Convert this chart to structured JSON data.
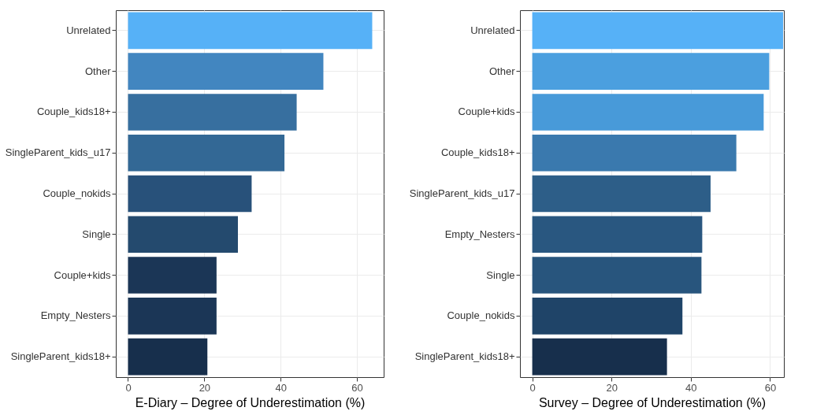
{
  "chart_data": [
    {
      "type": "bar",
      "orientation": "horizontal",
      "xlabel": "E-Diary – Degree of Underestimation (%)",
      "categories": [
        "Unrelated",
        "Other",
        "Couple_kids18+",
        "SingleParent_kids_u17",
        "Couple_nokids",
        "Single",
        "Couple+kids",
        "Empty_Nesters",
        "SingleParent_kids18+"
      ],
      "values": [
        64,
        51.2,
        44.2,
        41,
        32.4,
        28.8,
        23.2,
        23.2,
        20.8
      ],
      "colors": [
        "#56b1f7",
        "#4286c0",
        "#376f9f",
        "#336895",
        "#28517a",
        "#244a6e",
        "#1b3656",
        "#1b3656",
        "#172f4c"
      ],
      "xlim": [
        -3.2,
        67
      ],
      "xticks": [
        0,
        20,
        40,
        60
      ],
      "grid": true,
      "legend": false
    },
    {
      "type": "bar",
      "orientation": "horizontal",
      "xlabel": "Survey – Degree of Underestimation (%)",
      "categories": [
        "Unrelated",
        "Other",
        "Couple+kids",
        "Couple_kids18+",
        "SingleParent_kids_u17",
        "Empty_Nesters",
        "Single",
        "Couple_nokids",
        "SingleParent_kids18+"
      ],
      "values": [
        63.3,
        59.8,
        58.4,
        51.5,
        45,
        42.9,
        42.7,
        37.9,
        34
      ],
      "colors": [
        "#56b1f7",
        "#4b9fdf",
        "#489ad9",
        "#3a79ae",
        "#2d5e88",
        "#295780",
        "#28557d",
        "#1f4468",
        "#172f4c"
      ],
      "xlim": [
        -3.1,
        63.5
      ],
      "xticks": [
        0,
        20,
        40,
        60
      ],
      "grid": true,
      "legend": false
    }
  ]
}
